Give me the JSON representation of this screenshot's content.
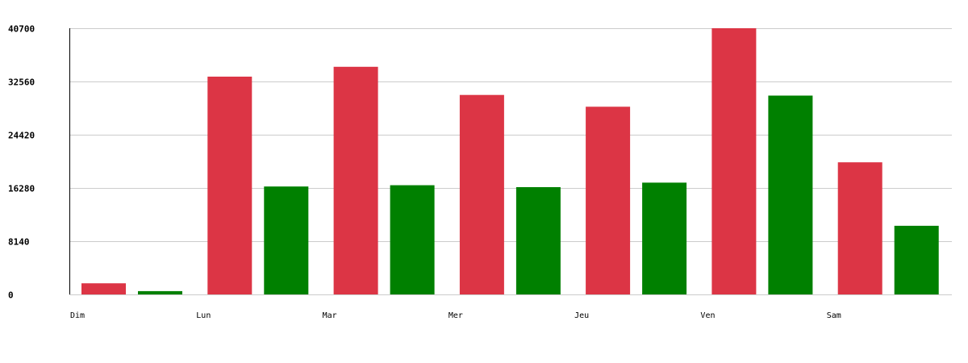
{
  "chart_data": {
    "type": "bar",
    "categories": [
      "Dim",
      "Lun",
      "Mar",
      "Mer",
      "Jeu",
      "Ven",
      "Sam"
    ],
    "series": [
      {
        "color": "#dc3545",
        "values": [
          1700,
          33300,
          34800,
          30500,
          28700,
          40700,
          20200
        ]
      },
      {
        "color": "#008000",
        "values": [
          500,
          16500,
          16700,
          16400,
          17100,
          30400,
          10500
        ]
      }
    ],
    "y_ticks": [
      0,
      8140,
      16280,
      24420,
      32560,
      40700
    ],
    "ylim": [
      0,
      40700
    ],
    "grid": true,
    "legend": "none"
  }
}
